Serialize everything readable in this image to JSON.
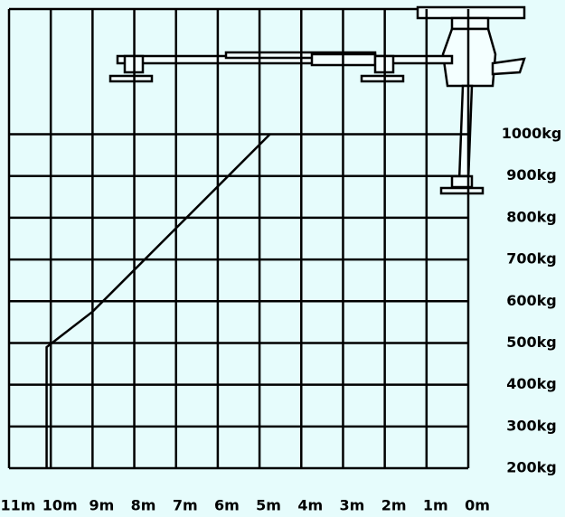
{
  "chart_data": {
    "type": "line",
    "x": [
      10.1,
      10.1,
      9,
      4.75
    ],
    "series": [
      {
        "color": "#000000",
        "values": [
          200,
          490,
          575,
          1000
        ]
      }
    ],
    "xlim": [
      11,
      0
    ],
    "xticks": [
      {
        "value": 11,
        "label": "11m"
      },
      {
        "value": 10,
        "label": "10m"
      },
      {
        "value": 9,
        "label": "9m"
      },
      {
        "value": 8,
        "label": "8m"
      },
      {
        "value": 7,
        "label": "7m"
      },
      {
        "value": 6,
        "label": "6m"
      },
      {
        "value": 5,
        "label": "5m"
      },
      {
        "value": 4,
        "label": "4m"
      },
      {
        "value": 3,
        "label": "3m"
      },
      {
        "value": 2,
        "label": "2m"
      },
      {
        "value": 1,
        "label": "1m"
      },
      {
        "value": 0,
        "label": "0m"
      }
    ],
    "ylim": [
      200,
      1300
    ],
    "yticks": [
      {
        "value": 200,
        "label": "200kg"
      },
      {
        "value": 300,
        "label": "300kg"
      },
      {
        "value": 400,
        "label": "400kg"
      },
      {
        "value": 500,
        "label": "500kg"
      },
      {
        "value": 600,
        "label": "600kg"
      },
      {
        "value": 700,
        "label": "700kg"
      },
      {
        "value": 800,
        "label": "800kg"
      },
      {
        "value": 900,
        "label": "900kg"
      },
      {
        "value": 1000,
        "label": "1000kg"
      }
    ],
    "grid": true
  }
}
